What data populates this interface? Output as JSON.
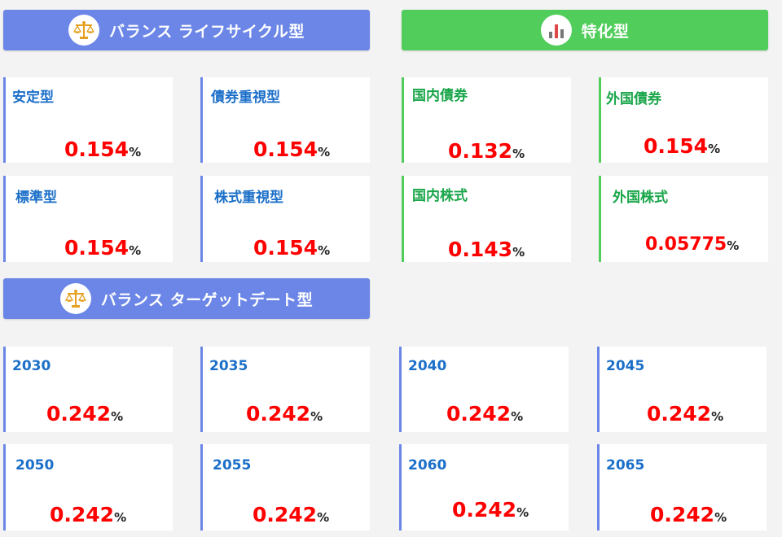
{
  "sections": {
    "lifecycle": {
      "title": "バランス ライフサイクル型",
      "icon": "balance-scale-icon"
    },
    "special": {
      "title": "特化型",
      "icon": "bar-chart-icon"
    },
    "targetdate": {
      "title": "バランス ターゲットデート型",
      "icon": "balance-scale-icon"
    }
  },
  "unit": "%",
  "lifecycle_funds": [
    {
      "name": "安定型",
      "value": "0.154"
    },
    {
      "name": "債券重視型",
      "value": "0.154"
    },
    {
      "name": "標準型",
      "value": "0.154"
    },
    {
      "name": "株式重視型",
      "value": "0.154"
    }
  ],
  "special_funds": [
    {
      "name": "国内債券",
      "value": "0.132"
    },
    {
      "name": "外国債券",
      "value": "0.154"
    },
    {
      "name": "国内株式",
      "value": "0.143"
    },
    {
      "name": "外国株式",
      "value": "0.05775"
    }
  ],
  "targetdate_funds": [
    {
      "name": "2030",
      "value": "0.242"
    },
    {
      "name": "2035",
      "value": "0.242"
    },
    {
      "name": "2040",
      "value": "0.242"
    },
    {
      "name": "2045",
      "value": "0.242"
    },
    {
      "name": "2050",
      "value": "0.242"
    },
    {
      "name": "2055",
      "value": "0.242"
    },
    {
      "name": "2060",
      "value": "0.242"
    },
    {
      "name": "2065",
      "value": "0.242"
    }
  ],
  "colors": {
    "blue_header": "#6b86e6",
    "green_header": "#51cd5b",
    "value_red": "#ff0000",
    "name_blue": "#1b6fc9",
    "name_green": "#1aa64a"
  }
}
